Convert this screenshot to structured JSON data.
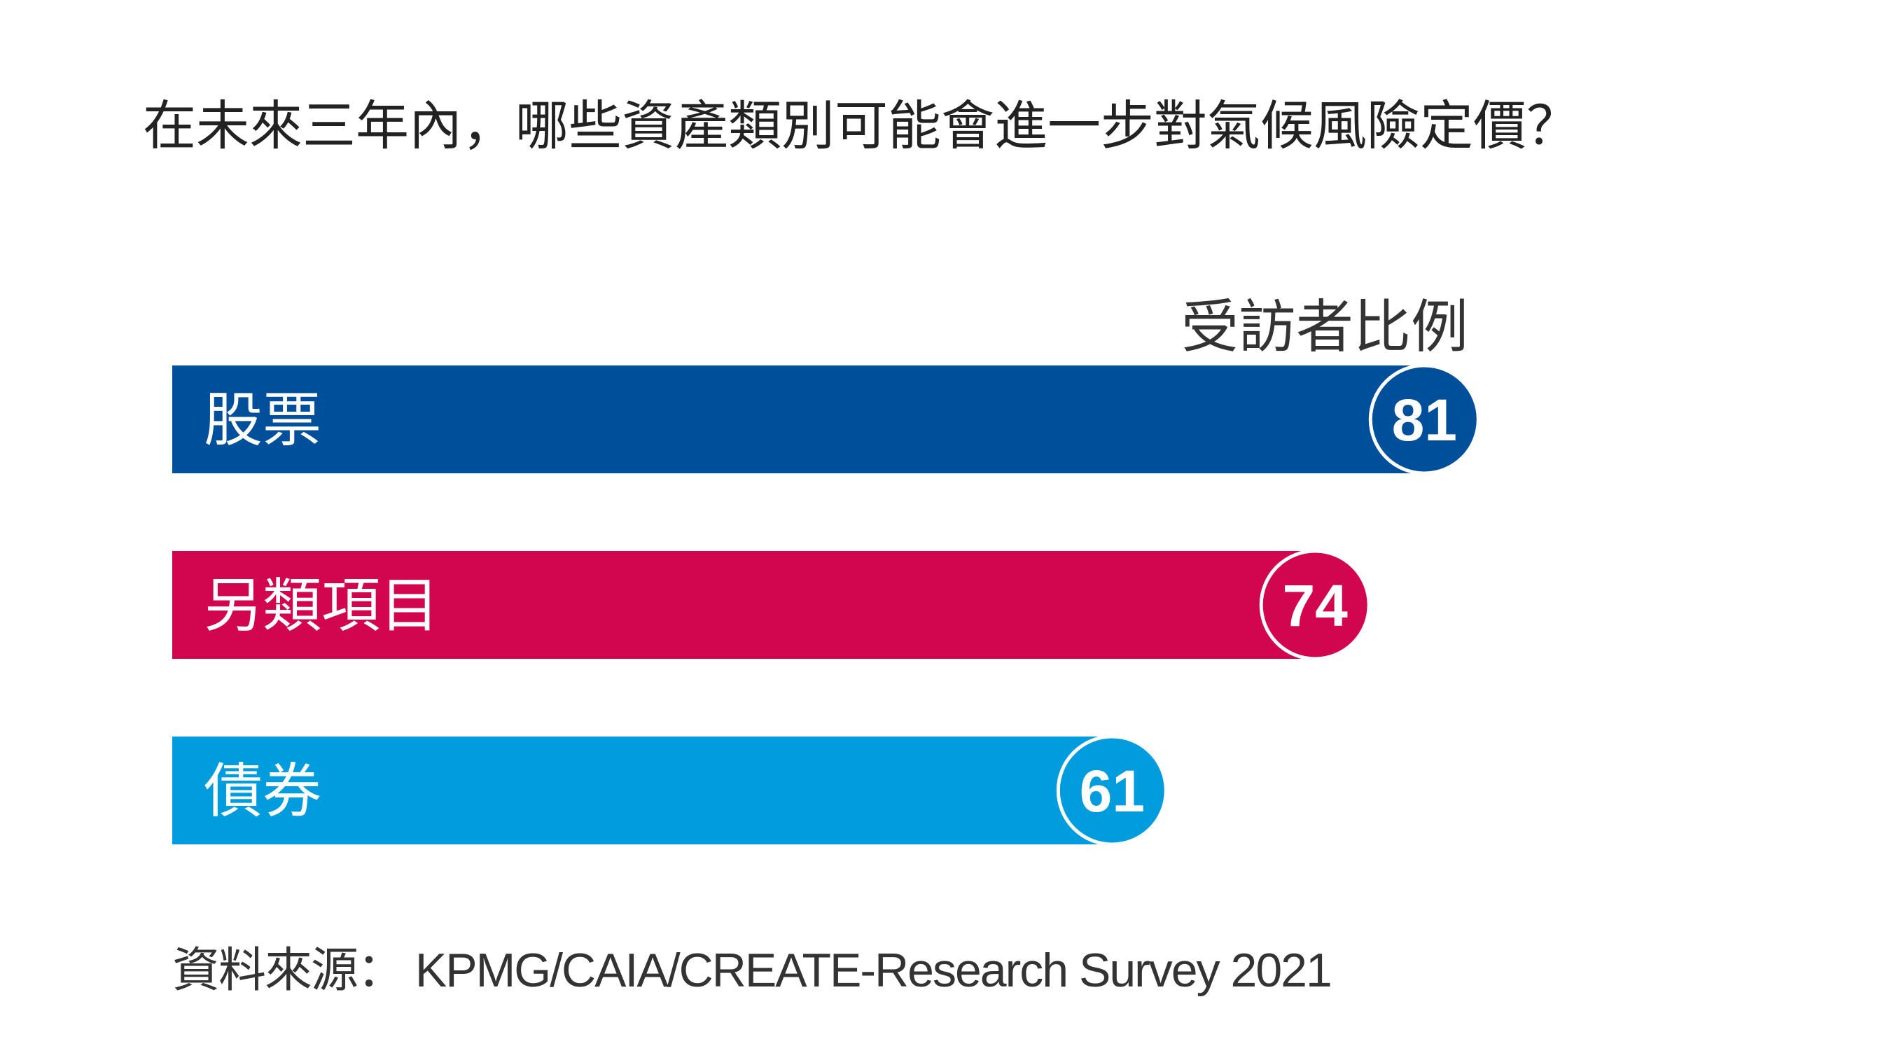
{
  "chart_data": {
    "type": "bar",
    "orientation": "horizontal",
    "title": "在未來三年內，哪些資產類別可能會進一步對氣候風險定價？",
    "unit_label": "受訪者比例",
    "categories": [
      "股票",
      "另類項目",
      "債券"
    ],
    "values": [
      81,
      74,
      61
    ],
    "colors": [
      "#004f9b",
      "#d2064f",
      "#009cdd"
    ],
    "source": "資料來源： KPMG/CAIA/CREATE-Research Survey 2021",
    "grid": false
  }
}
